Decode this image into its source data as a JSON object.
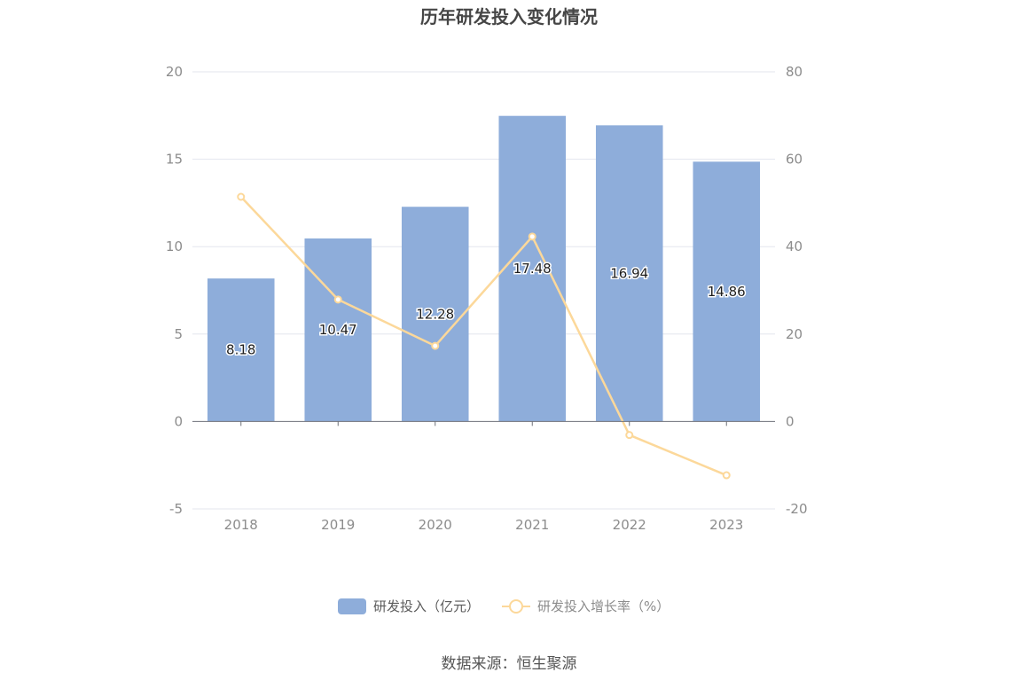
{
  "chart_data": {
    "type": "bar",
    "title": "历年研发投入变化情况",
    "categories": [
      "2018",
      "2019",
      "2020",
      "2021",
      "2022",
      "2023"
    ],
    "series": [
      {
        "name": "研发投入（亿元）",
        "type": "bar",
        "axis": "left",
        "values": [
          8.18,
          10.47,
          12.28,
          17.48,
          16.94,
          14.86
        ],
        "labels": [
          "8.18",
          "10.47",
          "12.28",
          "17.48",
          "16.94",
          "14.86"
        ],
        "color": "#8eadda"
      },
      {
        "name": "研发投入增长率（%）",
        "type": "line",
        "axis": "right",
        "values": [
          51.4,
          27.9,
          17.3,
          42.3,
          -3.1,
          -12.3
        ],
        "color": "#fcd89a"
      }
    ],
    "left_axis": {
      "ticks": [
        "-5",
        "0",
        "5",
        "10",
        "15",
        "20"
      ],
      "ylim": [
        -5,
        20
      ]
    },
    "right_axis": {
      "ticks": [
        "-20",
        "0",
        "20",
        "40",
        "60",
        "80"
      ],
      "ylim": [
        -20,
        80
      ]
    },
    "grid": true,
    "legend_position": "bottom-center",
    "source": "数据来源：恒生聚源"
  }
}
